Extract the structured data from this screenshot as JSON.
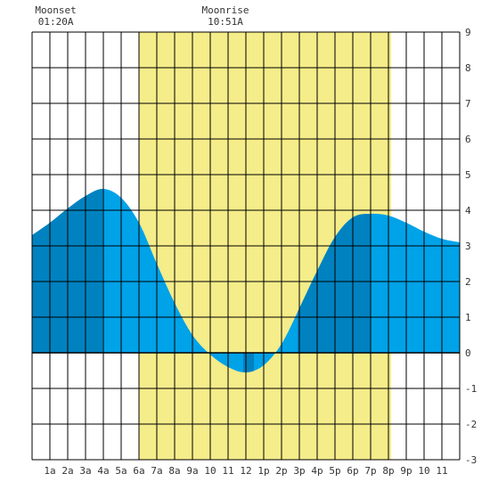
{
  "chart_data": {
    "type": "area",
    "title": "",
    "xlabel": "",
    "ylabel": "",
    "ylim": [
      -3,
      9
    ],
    "xlim": [
      0,
      24
    ],
    "grid": true,
    "x_tick_labels": [
      "1a",
      "2a",
      "3a",
      "4a",
      "5a",
      "6a",
      "7a",
      "8a",
      "9a",
      "10",
      "11",
      "12",
      "1p",
      "2p",
      "3p",
      "4p",
      "5p",
      "6p",
      "7p",
      "8p",
      "9p",
      "10",
      "11"
    ],
    "y_tick_labels": [
      "-3",
      "-2",
      "-1",
      "0",
      "1",
      "2",
      "3",
      "4",
      "5",
      "6",
      "7",
      "8",
      "9"
    ],
    "daylight": {
      "start_hour": 6.0,
      "end_hour": 20.15,
      "color": "#f5ec8a"
    },
    "events": [
      {
        "name": "Moonset",
        "time": "01:20A",
        "hour": 1.33
      },
      {
        "name": "Moonrise",
        "time": "10:51A",
        "hour": 10.85
      }
    ],
    "tide_extremes": [
      {
        "type": "high",
        "hour": 3.95,
        "value": 4.6
      },
      {
        "type": "low",
        "hour": 11.85,
        "value": -0.55
      },
      {
        "type": "high",
        "hour": 19.0,
        "value": 3.9
      }
    ],
    "series": [
      {
        "values_hourly": [
          3.3,
          3.65,
          4.05,
          4.4,
          4.6,
          4.35,
          3.65,
          2.5,
          1.4,
          0.5,
          -0.05,
          -0.4,
          -0.55,
          -0.35,
          0.25,
          1.25,
          2.3,
          3.25,
          3.8,
          3.9,
          3.85,
          3.65,
          3.4,
          3.2,
          3.1
        ]
      }
    ],
    "colors": {
      "tide_light": "#00a2e8",
      "tide_dark": "#0082c0",
      "grid": "#000000",
      "daylight": "#f5ec8a"
    }
  }
}
